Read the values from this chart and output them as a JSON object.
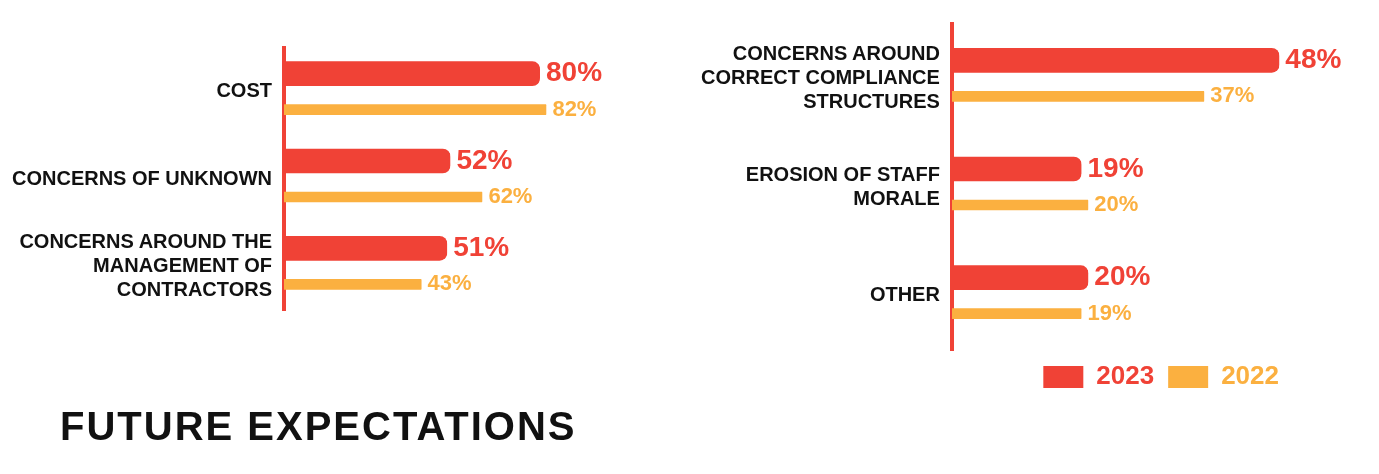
{
  "chart_data": [
    {
      "type": "bar",
      "orientation": "horizontal",
      "categories": [
        "COST",
        "CONCERNS OF UNKNOWN",
        "CONCERNS AROUND THE MANAGEMENT OF CONTRACTORS"
      ],
      "tick_labels": "y",
      "grid": false,
      "legend": false,
      "series": [
        {
          "color": "#f04236",
          "values": [
            80,
            52,
            51
          ],
          "value_labels": [
            "80%",
            "52%",
            "51%"
          ]
        },
        {
          "color": "#fbb040",
          "values": [
            82,
            62,
            43
          ],
          "value_labels": [
            "82%",
            "62%",
            "43%"
          ]
        }
      ],
      "annotations": [
        "FUTURE EXPECTATIONS"
      ]
    },
    {
      "type": "bar",
      "orientation": "horizontal",
      "categories": [
        "CONCERNS AROUND CORRECT COMPLIANCE STRUCTURES",
        "EROSION OF STAFF MORALE",
        "OTHER"
      ],
      "tick_labels": "y",
      "grid": false,
      "legend": "bottom right",
      "series": [
        {
          "name": "2023",
          "color": "#f04236",
          "values": [
            48,
            19,
            20
          ],
          "value_labels": [
            "48%",
            "19%",
            "20%"
          ]
        },
        {
          "name": "2022",
          "color": "#fbb040",
          "values": [
            37,
            20,
            19
          ],
          "value_labels": [
            "37%",
            "20%",
            "19%"
          ]
        }
      ]
    }
  ]
}
